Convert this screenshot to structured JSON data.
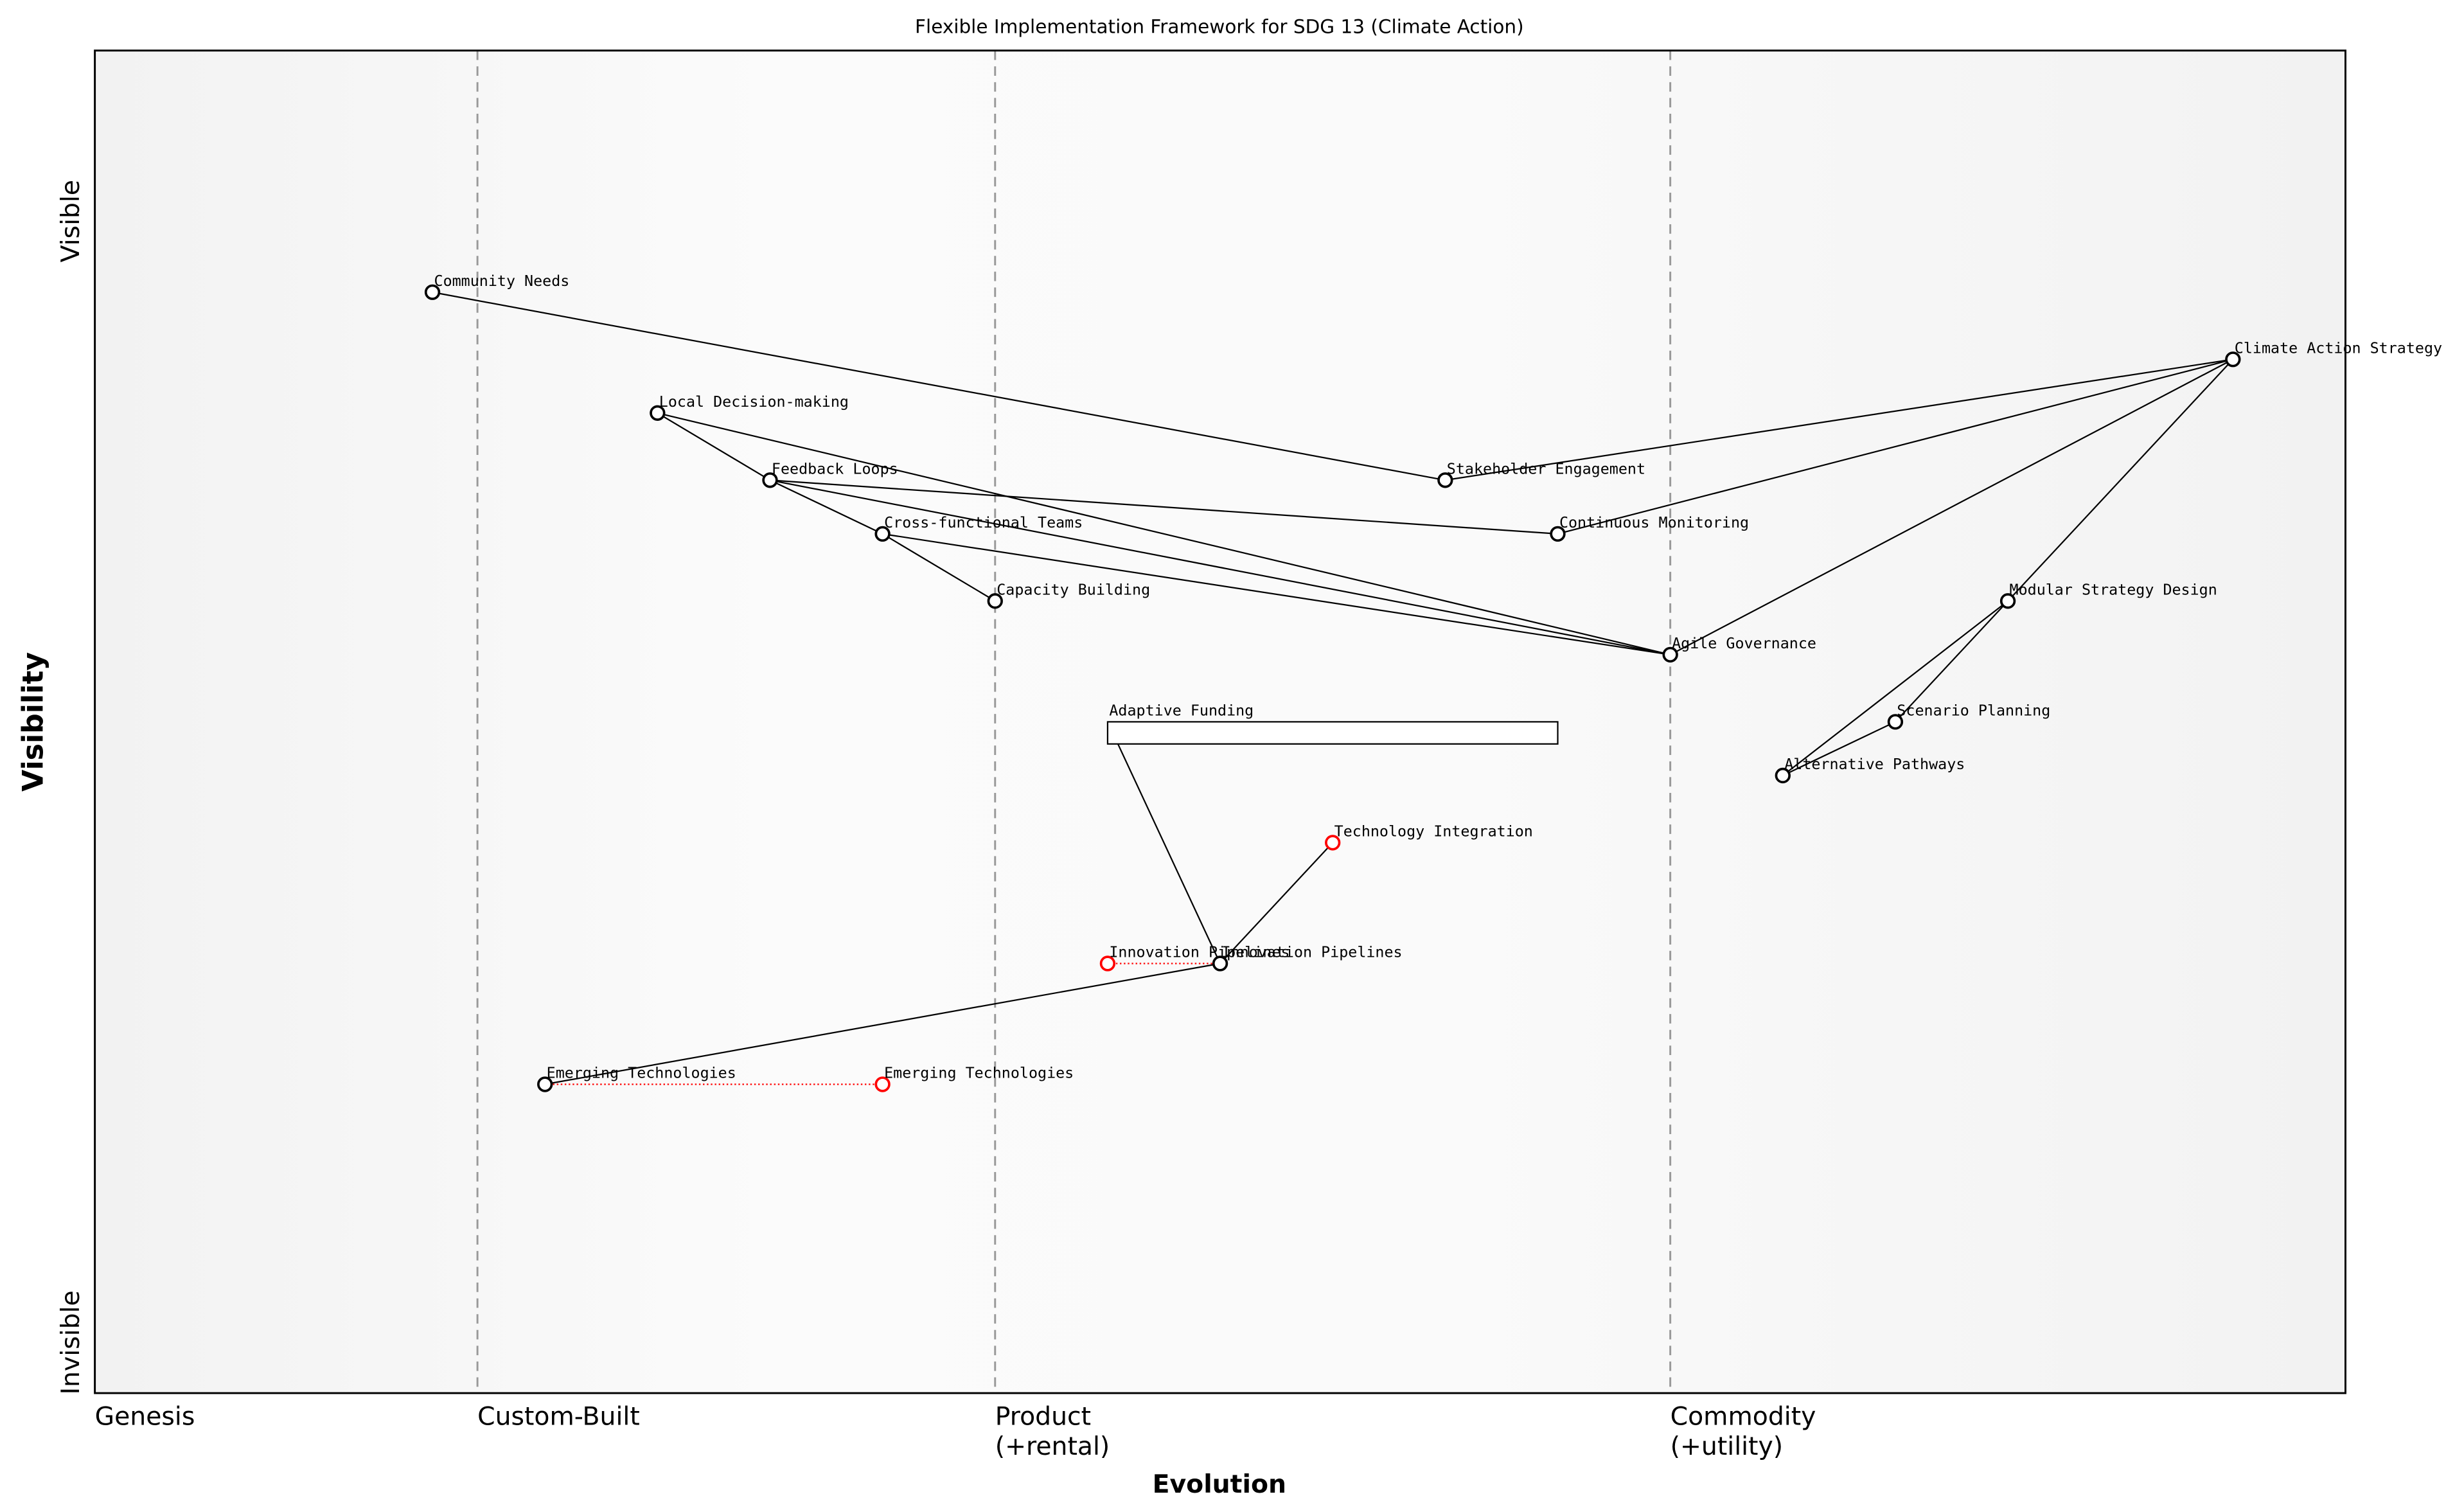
{
  "chart_data": {
    "type": "wardley",
    "title": "Flexible Implementation Framework for SDG 13 (Climate Action)",
    "x_label": "Evolution",
    "y_label": "Visibility",
    "y_top_label": "Visible",
    "y_bottom_label": "Invisible",
    "xlim": [
      0,
      1
    ],
    "ylim": [
      0,
      1
    ],
    "stages": [
      {
        "value": 0,
        "label": "Genesis"
      },
      {
        "value": 0.17,
        "label": "Custom-Built"
      },
      {
        "value": 0.4,
        "label": "Product\n(+rental)"
      },
      {
        "value": 0.7,
        "label": "Commodity\n(+utility)"
      }
    ],
    "nodes": [
      {
        "name": "Community Needs",
        "x": 0.15,
        "y": 0.82,
        "color": "#000000"
      },
      {
        "name": "Local Decision-making",
        "x": 0.25,
        "y": 0.73,
        "color": "#000000"
      },
      {
        "name": "Feedback Loops",
        "x": 0.3,
        "y": 0.68,
        "color": "#000000"
      },
      {
        "name": "Cross-functional Teams",
        "x": 0.35,
        "y": 0.64,
        "color": "#000000"
      },
      {
        "name": "Capacity Building",
        "x": 0.4,
        "y": 0.59,
        "color": "#000000"
      },
      {
        "name": "Stakeholder Engagement",
        "x": 0.6,
        "y": 0.68,
        "color": "#000000"
      },
      {
        "name": "Continuous Monitoring",
        "x": 0.65,
        "y": 0.64,
        "color": "#000000"
      },
      {
        "name": "Agile Governance",
        "x": 0.7,
        "y": 0.55,
        "color": "#000000"
      },
      {
        "name": "Climate Action Strategy",
        "x": 0.95,
        "y": 0.77,
        "color": "#000000"
      },
      {
        "name": "Modular Strategy Design",
        "x": 0.85,
        "y": 0.59,
        "color": "#000000"
      },
      {
        "name": "Scenario Planning",
        "x": 0.8,
        "y": 0.5,
        "color": "#000000"
      },
      {
        "name": "Alternative Pathways",
        "x": 0.75,
        "y": 0.46,
        "color": "#000000"
      },
      {
        "name": "Adaptive Funding",
        "x": 0.45,
        "y": 0.5,
        "pipeline_end": 0.65,
        "color": "#000000"
      },
      {
        "name": "Innovation Pipelines",
        "x": 0.5,
        "y": 0.32,
        "color": "#000000"
      },
      {
        "name": "Technology Integration",
        "x": 0.55,
        "y": 0.41,
        "color": "#ff0000"
      },
      {
        "name": "Emerging Technologies",
        "x": 0.2,
        "y": 0.23,
        "color": "#000000"
      }
    ],
    "links": [
      [
        0,
        5
      ],
      [
        5,
        8
      ],
      [
        8,
        6
      ],
      [
        8,
        7
      ],
      [
        8,
        9
      ],
      [
        9,
        10
      ],
      [
        9,
        11
      ],
      [
        10,
        11
      ],
      [
        1,
        2
      ],
      [
        2,
        3
      ],
      [
        3,
        4
      ],
      [
        1,
        7
      ],
      [
        2,
        7
      ],
      [
        2,
        6
      ],
      [
        3,
        7
      ],
      [
        12,
        13
      ],
      [
        13,
        14
      ],
      [
        13,
        15
      ]
    ],
    "evolve_color": "#ff0000",
    "evolutions": [
      {
        "node": 15,
        "name": "Emerging Technologies",
        "x": 0.35
      },
      {
        "node": 13,
        "name": "Innovation Pipelines",
        "x": 0.45
      }
    ]
  }
}
